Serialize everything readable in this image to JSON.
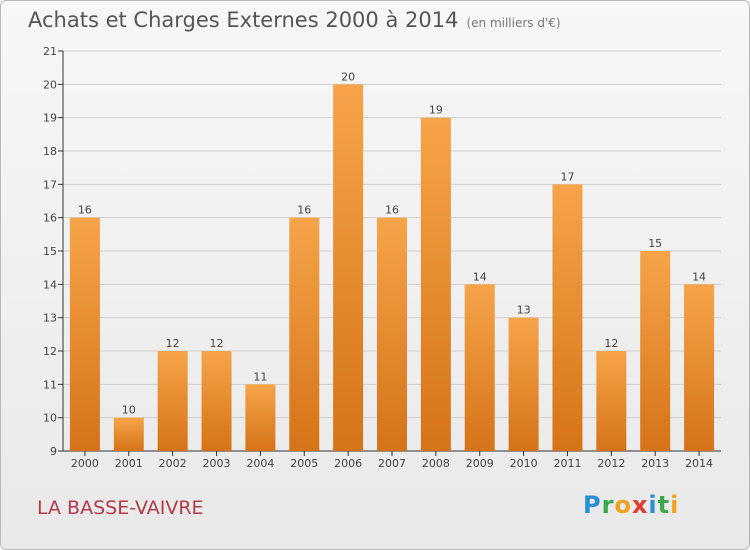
{
  "header": {
    "title": "Achats et Charges Externes 2000 à 2014",
    "subtitle": "(en milliers d'€)"
  },
  "footer": {
    "place": "LA BASSE-VAIVRE",
    "logo": {
      "letters": [
        "P",
        "r",
        "o",
        "x",
        "i",
        "t",
        "i"
      ],
      "colors": [
        "#2a8fd6",
        "#3aa84b",
        "#f0a21f",
        "#e23b2e",
        "#2a8fd6",
        "#3aa84b",
        "#f0a21f"
      ]
    }
  },
  "colors": {
    "bar_top": "#f6a449",
    "bar_bottom": "#d57318",
    "grid": "#cfcfcf",
    "axis": "#333333"
  },
  "chart_data": {
    "type": "bar",
    "categories": [
      "2000",
      "2001",
      "2002",
      "2003",
      "2004",
      "2005",
      "2006",
      "2007",
      "2008",
      "2009",
      "2010",
      "2011",
      "2012",
      "2013",
      "2014"
    ],
    "values": [
      16,
      10,
      12,
      12,
      11,
      16,
      20,
      16,
      19,
      14,
      13,
      17,
      12,
      15,
      14
    ],
    "title": "Achats et Charges Externes 2000 à 2014",
    "subtitle": "(en milliers d'€)",
    "xlabel": "",
    "ylabel": "",
    "ylim": [
      9,
      21
    ],
    "yticks": [
      9,
      10,
      11,
      12,
      13,
      14,
      15,
      16,
      17,
      18,
      19,
      20,
      21
    ],
    "grid": true,
    "legend": "none"
  }
}
